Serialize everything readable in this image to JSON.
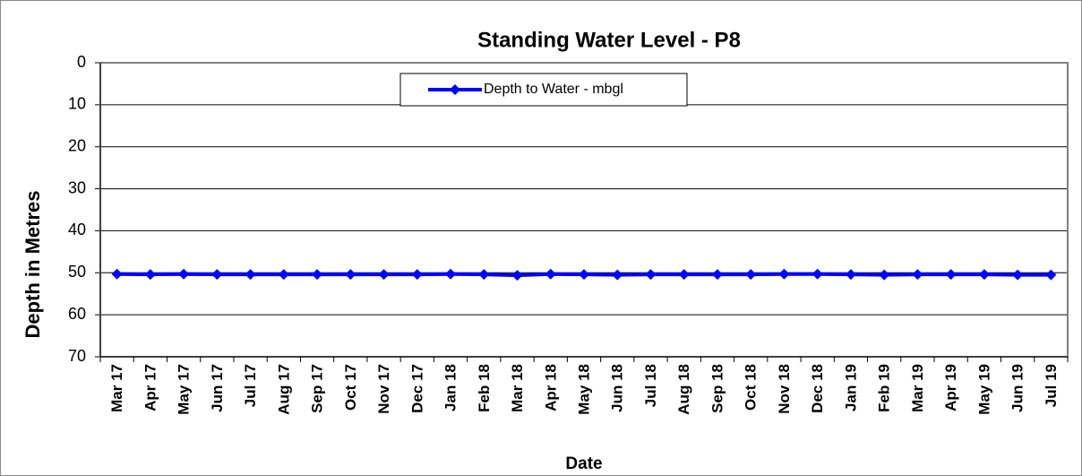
{
  "chart_data": {
    "type": "line",
    "title": "Standing Water Level - P8",
    "x_label": "Date",
    "y_label": "Depth in Metres",
    "categories": [
      "Mar 17",
      "Apr 17",
      "May 17",
      "Jun 17",
      "Jul 17",
      "Aug 17",
      "Sep 17",
      "Oct 17",
      "Nov 17",
      "Dec 17",
      "Jan 18",
      "Feb 18",
      "Mar 18",
      "Apr 18",
      "May 18",
      "Jun 18",
      "Jul 18",
      "Aug 18",
      "Sep 18",
      "Oct 18",
      "Nov 18",
      "Dec 18",
      "Jan 19",
      "Feb 19",
      "Mar 19",
      "Apr 19",
      "May 19",
      "Jun 19",
      "Jul 19"
    ],
    "series": [
      {
        "name": "Depth to Water - mbgl",
        "color": "#0000ff",
        "values": [
          50.3,
          50.4,
          50.3,
          50.4,
          50.4,
          50.4,
          50.4,
          50.4,
          50.4,
          50.4,
          50.3,
          50.4,
          50.6,
          50.3,
          50.4,
          50.5,
          50.4,
          50.4,
          50.4,
          50.4,
          50.3,
          50.3,
          50.4,
          50.5,
          50.4,
          50.4,
          50.4,
          50.5,
          50.5
        ]
      }
    ],
    "ylim": [
      0,
      70
    ],
    "yticks": [
      0,
      10,
      20,
      30,
      40,
      50,
      60,
      70
    ],
    "y_inverted": true,
    "grid": true,
    "legend": "top"
  }
}
